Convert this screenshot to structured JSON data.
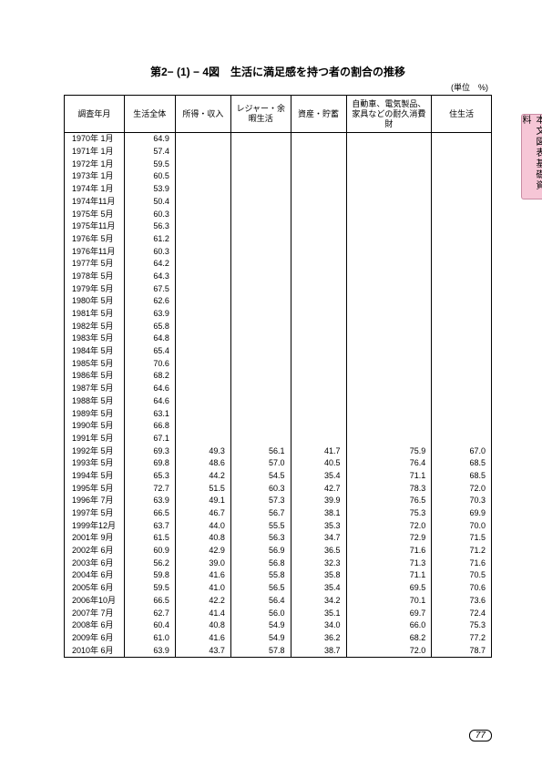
{
  "title": "第2− (1) − 4図　生活に満足感を持つ者の割合の推移",
  "unit": "(単位　%)",
  "sideTab": "本文図表基礎資料",
  "pageNum": "77",
  "headers": [
    "調査年月",
    "生活全体",
    "所得・収入",
    "レジャー・余暇生活",
    "資産・貯蓄",
    "自動車、電気製品、家具などの耐久消費財",
    "住生活"
  ],
  "rows": [
    {
      "p": "1970年 1月",
      "v": [
        "64.9",
        "",
        "",
        "",
        "",
        ""
      ]
    },
    {
      "p": "1971年 1月",
      "v": [
        "57.4",
        "",
        "",
        "",
        "",
        ""
      ]
    },
    {
      "p": "1972年 1月",
      "v": [
        "59.5",
        "",
        "",
        "",
        "",
        ""
      ]
    },
    {
      "p": "1973年 1月",
      "v": [
        "60.5",
        "",
        "",
        "",
        "",
        ""
      ]
    },
    {
      "p": "1974年 1月",
      "v": [
        "53.9",
        "",
        "",
        "",
        "",
        ""
      ]
    },
    {
      "p": "1974年11月",
      "v": [
        "50.4",
        "",
        "",
        "",
        "",
        ""
      ]
    },
    {
      "p": "1975年 5月",
      "v": [
        "60.3",
        "",
        "",
        "",
        "",
        ""
      ]
    },
    {
      "p": "1975年11月",
      "v": [
        "56.3",
        "",
        "",
        "",
        "",
        ""
      ]
    },
    {
      "p": "1976年 5月",
      "v": [
        "61.2",
        "",
        "",
        "",
        "",
        ""
      ]
    },
    {
      "p": "1976年11月",
      "v": [
        "60.3",
        "",
        "",
        "",
        "",
        ""
      ]
    },
    {
      "p": "1977年 5月",
      "v": [
        "64.2",
        "",
        "",
        "",
        "",
        ""
      ]
    },
    {
      "p": "1978年 5月",
      "v": [
        "64.3",
        "",
        "",
        "",
        "",
        ""
      ]
    },
    {
      "p": "1979年 5月",
      "v": [
        "67.5",
        "",
        "",
        "",
        "",
        ""
      ]
    },
    {
      "p": "1980年 5月",
      "v": [
        "62.6",
        "",
        "",
        "",
        "",
        ""
      ]
    },
    {
      "p": "1981年 5月",
      "v": [
        "63.9",
        "",
        "",
        "",
        "",
        ""
      ]
    },
    {
      "p": "1982年 5月",
      "v": [
        "65.8",
        "",
        "",
        "",
        "",
        ""
      ]
    },
    {
      "p": "1983年 5月",
      "v": [
        "64.8",
        "",
        "",
        "",
        "",
        ""
      ]
    },
    {
      "p": "1984年 5月",
      "v": [
        "65.4",
        "",
        "",
        "",
        "",
        ""
      ]
    },
    {
      "p": "1985年 5月",
      "v": [
        "70.6",
        "",
        "",
        "",
        "",
        ""
      ]
    },
    {
      "p": "1986年 5月",
      "v": [
        "68.2",
        "",
        "",
        "",
        "",
        ""
      ]
    },
    {
      "p": "1987年 5月",
      "v": [
        "64.6",
        "",
        "",
        "",
        "",
        ""
      ]
    },
    {
      "p": "1988年 5月",
      "v": [
        "64.6",
        "",
        "",
        "",
        "",
        ""
      ]
    },
    {
      "p": "1989年 5月",
      "v": [
        "63.1",
        "",
        "",
        "",
        "",
        ""
      ]
    },
    {
      "p": "1990年 5月",
      "v": [
        "66.8",
        "",
        "",
        "",
        "",
        ""
      ]
    },
    {
      "p": "1991年 5月",
      "v": [
        "67.1",
        "",
        "",
        "",
        "",
        ""
      ]
    },
    {
      "p": "1992年 5月",
      "v": [
        "69.3",
        "49.3",
        "56.1",
        "41.7",
        "75.9",
        "67.0"
      ]
    },
    {
      "p": "1993年 5月",
      "v": [
        "69.8",
        "48.6",
        "57.0",
        "40.5",
        "76.4",
        "68.5"
      ]
    },
    {
      "p": "1994年 5月",
      "v": [
        "65.3",
        "44.2",
        "54.5",
        "35.4",
        "71.1",
        "68.5"
      ]
    },
    {
      "p": "1995年 5月",
      "v": [
        "72.7",
        "51.5",
        "60.3",
        "42.7",
        "78.3",
        "72.0"
      ]
    },
    {
      "p": "1996年 7月",
      "v": [
        "63.9",
        "49.1",
        "57.3",
        "39.9",
        "76.5",
        "70.3"
      ]
    },
    {
      "p": "1997年 5月",
      "v": [
        "66.5",
        "46.7",
        "56.7",
        "38.1",
        "75.3",
        "69.9"
      ]
    },
    {
      "p": "1999年12月",
      "v": [
        "63.7",
        "44.0",
        "55.5",
        "35.3",
        "72.0",
        "70.0"
      ]
    },
    {
      "p": "2001年 9月",
      "v": [
        "61.5",
        "40.8",
        "56.3",
        "34.7",
        "72.9",
        "71.5"
      ]
    },
    {
      "p": "2002年 6月",
      "v": [
        "60.9",
        "42.9",
        "56.9",
        "36.5",
        "71.6",
        "71.2"
      ]
    },
    {
      "p": "2003年 6月",
      "v": [
        "56.2",
        "39.0",
        "56.8",
        "32.3",
        "71.3",
        "71.6"
      ]
    },
    {
      "p": "2004年 6月",
      "v": [
        "59.8",
        "41.6",
        "55.8",
        "35.8",
        "71.1",
        "70.5"
      ]
    },
    {
      "p": "2005年 6月",
      "v": [
        "59.5",
        "41.0",
        "56.5",
        "35.4",
        "69.5",
        "70.6"
      ]
    },
    {
      "p": "2006年10月",
      "v": [
        "66.5",
        "42.2",
        "56.4",
        "34.2",
        "70.1",
        "73.6"
      ]
    },
    {
      "p": "2007年 7月",
      "v": [
        "62.7",
        "41.4",
        "56.0",
        "35.1",
        "69.7",
        "72.4"
      ]
    },
    {
      "p": "2008年 6月",
      "v": [
        "60.4",
        "40.8",
        "54.9",
        "34.0",
        "66.0",
        "75.3"
      ]
    },
    {
      "p": "2009年 6月",
      "v": [
        "61.0",
        "41.6",
        "54.9",
        "36.2",
        "68.2",
        "77.2"
      ]
    },
    {
      "p": "2010年 6月",
      "v": [
        "63.9",
        "43.7",
        "57.8",
        "38.7",
        "72.0",
        "78.7"
      ]
    }
  ]
}
